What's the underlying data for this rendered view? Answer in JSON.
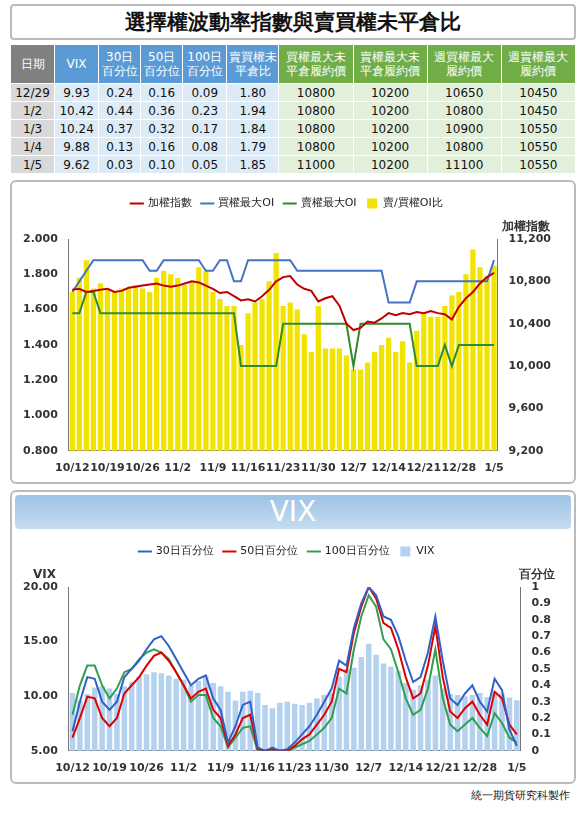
{
  "title": "選擇權波動率指數與賣買權未平倉比",
  "table": {
    "columns": [
      "日期",
      "VIX",
      "30日百分位",
      "50日百分位",
      "100日百分位",
      "賣買權未平倉比",
      "買權最大未平倉履約價",
      "賣權最大未平倉履約價",
      "週買權最大履約價",
      "週賣權最大履約價"
    ],
    "rows": [
      [
        "12/29",
        "9.93",
        "0.24",
        "0.16",
        "0.09",
        "1.80",
        "10800",
        "10200",
        "10650",
        "10450"
      ],
      [
        "1/2",
        "10.42",
        "0.44",
        "0.36",
        "0.23",
        "1.94",
        "10800",
        "10200",
        "10800",
        "10450"
      ],
      [
        "1/3",
        "10.24",
        "0.37",
        "0.32",
        "0.17",
        "1.84",
        "10800",
        "10200",
        "10900",
        "10550"
      ],
      [
        "1/4",
        "9.88",
        "0.13",
        "0.16",
        "0.08",
        "1.79",
        "10800",
        "10200",
        "10800",
        "10550"
      ],
      [
        "1/5",
        "9.62",
        "0.03",
        "0.10",
        "0.05",
        "1.85",
        "11000",
        "10200",
        "11100",
        "10550"
      ]
    ]
  },
  "chart_data": [
    {
      "type": "bar",
      "categories": [
        "10/12",
        null,
        null,
        null,
        null,
        "10/19",
        null,
        null,
        null,
        null,
        "10/26",
        null,
        null,
        null,
        null,
        "11/2",
        null,
        null,
        null,
        null,
        "11/9",
        null,
        null,
        null,
        null,
        "11/16",
        null,
        null,
        null,
        null,
        "11/23",
        null,
        null,
        null,
        null,
        "11/30",
        null,
        null,
        null,
        null,
        "12/7",
        null,
        null,
        null,
        null,
        "12/14",
        null,
        null,
        null,
        null,
        "12/21",
        null,
        null,
        null,
        null,
        "12/28",
        null,
        null,
        null,
        null,
        "1/5"
      ],
      "ylim": [
        0.8,
        2.0
      ],
      "yticks": [
        {
          "value": 0.8,
          "label": "0.800"
        },
        {
          "value": 1.0,
          "label": "1.000"
        },
        {
          "value": 1.2,
          "label": "1.200"
        },
        {
          "value": 1.4,
          "label": "1.400"
        },
        {
          "value": 1.6,
          "label": "1.600"
        },
        {
          "value": 1.8,
          "label": "1.800"
        },
        {
          "value": 2.0,
          "label": "2.000"
        }
      ],
      "y2lim": [
        9200,
        11200
      ],
      "y2ticks": [
        {
          "value": 9200,
          "label": "9,200"
        },
        {
          "value": 9600,
          "label": "9,600"
        },
        {
          "value": 10000,
          "label": "10,000"
        },
        {
          "value": 10400,
          "label": "10,400"
        },
        {
          "value": 10800,
          "label": "10,800"
        },
        {
          "value": 11200,
          "label": "11,200"
        }
      ],
      "y2label": "加權指數",
      "grid": false,
      "legend": "top",
      "series": [
        {
          "name": "賣/買權OI比",
          "type": "bar",
          "color": "#f2e400",
          "values": [
            1.7,
            1.78,
            1.88,
            1.72,
            1.75,
            1.72,
            1.7,
            1.72,
            1.72,
            1.74,
            1.72,
            1.7,
            1.78,
            1.82,
            1.8,
            1.78,
            1.74,
            1.76,
            1.84,
            1.82,
            1.7,
            1.66,
            1.62,
            1.62,
            1.4,
            1.58,
            1.64,
            1.66,
            1.76,
            1.92,
            1.62,
            1.64,
            1.6,
            1.46,
            1.36,
            1.62,
            1.38,
            1.38,
            1.38,
            1.34,
            1.26,
            1.26,
            1.3,
            1.36,
            1.4,
            1.44,
            1.36,
            1.42,
            1.3,
            1.48,
            1.58,
            1.56,
            1.56,
            1.62,
            1.68,
            1.7,
            1.8,
            1.94,
            1.84,
            1.79,
            1.85
          ]
        },
        {
          "name": "加權指數",
          "type": "line",
          "axis": "y2",
          "color": "#c00000",
          "values": [
            10720,
            10730,
            10700,
            10710,
            10720,
            10730,
            10700,
            10710,
            10740,
            10750,
            10760,
            10770,
            10780,
            10760,
            10750,
            10760,
            10780,
            10800,
            10790,
            10760,
            10730,
            10690,
            10700,
            10660,
            10620,
            10630,
            10610,
            10660,
            10720,
            10800,
            10840,
            10850,
            10770,
            10730,
            10710,
            10610,
            10640,
            10660,
            10570,
            10400,
            10340,
            10360,
            10420,
            10410,
            10450,
            10500,
            10480,
            10500,
            10490,
            10510,
            10500,
            10520,
            10500,
            10490,
            10440,
            10560,
            10640,
            10700,
            10780,
            10840,
            10880
          ]
        },
        {
          "name": "買權最大OI",
          "type": "line",
          "axis": "y2",
          "color": "#4472c4",
          "values": [
            10700,
            10800,
            10900,
            11000,
            11000,
            11000,
            11000,
            11000,
            11000,
            11000,
            11000,
            10900,
            10900,
            11000,
            11000,
            11000,
            11000,
            11000,
            11000,
            10900,
            10900,
            11000,
            11000,
            10800,
            10800,
            11000,
            11000,
            11000,
            11000,
            11000,
            11000,
            11000,
            10900,
            10900,
            10900,
            10900,
            10900,
            10900,
            10900,
            10900,
            10900,
            10900,
            10900,
            10900,
            10900,
            10600,
            10600,
            10600,
            10600,
            10800,
            10800,
            10800,
            10800,
            10800,
            10800,
            10800,
            10800,
            10800,
            10800,
            10800,
            11000
          ]
        },
        {
          "name": "賣權最大OI",
          "type": "line",
          "axis": "y2",
          "color": "#2e8b2e",
          "values": [
            10500,
            10500,
            10700,
            10700,
            10500,
            10500,
            10500,
            10500,
            10500,
            10500,
            10500,
            10500,
            10500,
            10500,
            10500,
            10500,
            10500,
            10500,
            10500,
            10500,
            10500,
            10500,
            10500,
            10500,
            10000,
            10000,
            10000,
            10000,
            10000,
            10000,
            10400,
            10400,
            10400,
            10400,
            10400,
            10400,
            10400,
            10400,
            10400,
            10400,
            10000,
            10400,
            10400,
            10400,
            10400,
            10400,
            10400,
            10400,
            10400,
            10000,
            10000,
            10000,
            10000,
            10200,
            10000,
            10200,
            10200,
            10200,
            10200,
            10200,
            10200
          ]
        }
      ]
    },
    {
      "type": "bar",
      "title": "VIX",
      "categories": [
        "10/12",
        null,
        null,
        null,
        null,
        "10/19",
        null,
        null,
        null,
        null,
        "10/26",
        null,
        null,
        null,
        null,
        "11/2",
        null,
        null,
        null,
        null,
        "11/9",
        null,
        null,
        null,
        null,
        "11/16",
        null,
        null,
        null,
        null,
        "11/23",
        null,
        null,
        null,
        null,
        "11/30",
        null,
        null,
        null,
        null,
        "12/7",
        null,
        null,
        null,
        null,
        "12/14",
        null,
        null,
        null,
        null,
        "12/21",
        null,
        null,
        null,
        null,
        "12/28",
        null,
        null,
        null,
        null,
        "1/5"
      ],
      "ylim": [
        5,
        20
      ],
      "yticks": [
        {
          "value": 5,
          "label": "5.00"
        },
        {
          "value": 10,
          "label": "10.00"
        },
        {
          "value": 15,
          "label": "15.00"
        },
        {
          "value": 20,
          "label": "20.00"
        }
      ],
      "ylabel": "VIX",
      "y2lim": [
        0,
        1
      ],
      "y2ticks": [
        0,
        0.1,
        0.2,
        0.3,
        0.4,
        0.5,
        0.6,
        0.7,
        0.8,
        0.9,
        1
      ],
      "y2label": "百分位",
      "grid": false,
      "legend": "top",
      "series": [
        {
          "name": "VIX",
          "type": "bar",
          "color": "#b4d2ef",
          "values": [
            10.3,
            9.6,
            10.2,
            10.8,
            10.9,
            10.7,
            10.2,
            10.9,
            11.3,
            11.8,
            12.0,
            12.2,
            12.1,
            11.9,
            11.6,
            11.5,
            11.0,
            11.4,
            11.9,
            11.2,
            10.9,
            10.4,
            9.6,
            10.4,
            10.5,
            10.3,
            9.2,
            8.9,
            9.4,
            9.5,
            9.3,
            9.2,
            9.4,
            9.8,
            10.1,
            10.3,
            11.8,
            12.5,
            12.6,
            13.6,
            14.8,
            13.8,
            13.0,
            12.7,
            12.3,
            11.2,
            10.6,
            11.0,
            11.5,
            11.9,
            10.7,
            10.2,
            10.1,
            10.0,
            10.1,
            10.3,
            9.93,
            10.42,
            10.24,
            9.88,
            9.62
          ]
        },
        {
          "name": "30日百分位",
          "type": "line",
          "axis": "y2",
          "color": "#3060c8",
          "values": [
            0.12,
            0.3,
            0.45,
            0.44,
            0.3,
            0.25,
            0.3,
            0.45,
            0.5,
            0.55,
            0.62,
            0.68,
            0.7,
            0.64,
            0.56,
            0.48,
            0.4,
            0.44,
            0.46,
            0.32,
            0.25,
            0.05,
            0.15,
            0.28,
            0.3,
            0.02,
            0.0,
            0.02,
            0.0,
            0.01,
            0.05,
            0.1,
            0.15,
            0.22,
            0.3,
            0.38,
            0.55,
            0.52,
            0.75,
            0.9,
            1.0,
            0.95,
            0.82,
            0.8,
            0.7,
            0.55,
            0.42,
            0.45,
            0.6,
            0.82,
            0.55,
            0.32,
            0.28,
            0.35,
            0.4,
            0.3,
            0.24,
            0.44,
            0.37,
            0.13,
            0.03
          ]
        },
        {
          "name": "50日百分位",
          "type": "line",
          "axis": "y2",
          "color": "#e00000",
          "values": [
            0.08,
            0.2,
            0.33,
            0.32,
            0.2,
            0.15,
            0.2,
            0.35,
            0.4,
            0.45,
            0.52,
            0.58,
            0.6,
            0.55,
            0.48,
            0.4,
            0.32,
            0.36,
            0.38,
            0.25,
            0.2,
            0.03,
            0.1,
            0.2,
            0.22,
            0.01,
            0.0,
            0.01,
            0.0,
            0.0,
            0.03,
            0.07,
            0.1,
            0.16,
            0.22,
            0.3,
            0.5,
            0.48,
            0.72,
            0.88,
            1.0,
            0.93,
            0.78,
            0.75,
            0.62,
            0.45,
            0.32,
            0.35,
            0.52,
            0.76,
            0.45,
            0.24,
            0.2,
            0.26,
            0.3,
            0.22,
            0.16,
            0.36,
            0.32,
            0.16,
            0.1
          ]
        },
        {
          "name": "100日百分位",
          "type": "line",
          "axis": "y2",
          "color": "#30a050",
          "values": [
            0.22,
            0.4,
            0.52,
            0.52,
            0.4,
            0.32,
            0.38,
            0.48,
            0.5,
            0.56,
            0.6,
            0.62,
            0.6,
            0.56,
            0.48,
            0.4,
            0.3,
            0.34,
            0.34,
            0.2,
            0.15,
            0.02,
            0.08,
            0.14,
            0.15,
            0.0,
            0.0,
            0.0,
            0.0,
            0.0,
            0.02,
            0.04,
            0.06,
            0.1,
            0.14,
            0.2,
            0.38,
            0.35,
            0.62,
            0.82,
            0.95,
            0.88,
            0.68,
            0.62,
            0.48,
            0.32,
            0.22,
            0.25,
            0.38,
            0.62,
            0.32,
            0.16,
            0.12,
            0.16,
            0.2,
            0.14,
            0.09,
            0.23,
            0.17,
            0.08,
            0.05
          ]
        }
      ]
    }
  ],
  "credit": "統一期貨研究科製作"
}
